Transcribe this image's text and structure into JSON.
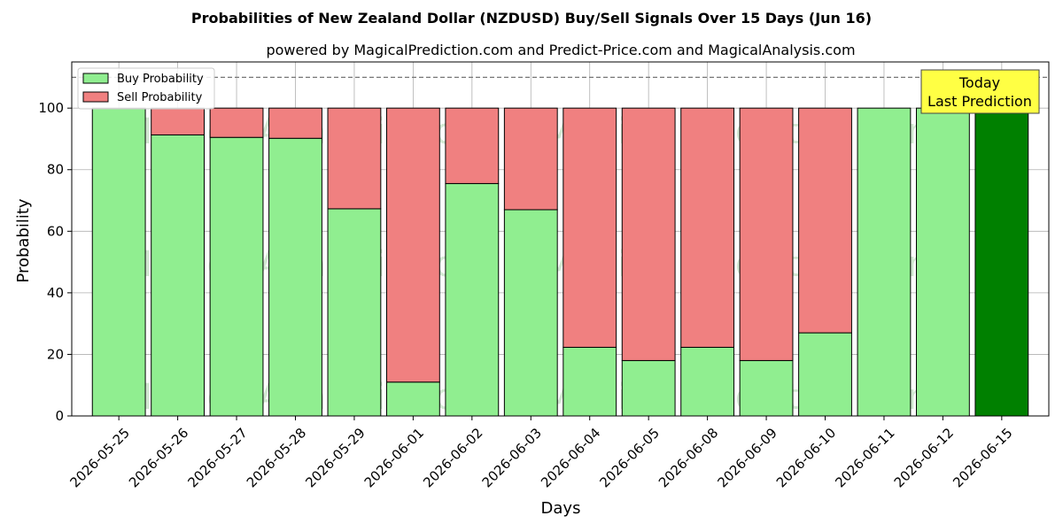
{
  "chart_data": {
    "type": "bar",
    "stacked": true,
    "title": "Probabilities of New Zealand Dollar (NZDUSD) Buy/Sell Signals Over 15 Days (Jun 16)",
    "subtitle": "powered by MagicalPrediction.com and Predict-Price.com and MagicalAnalysis.com",
    "xlabel": "Days",
    "ylabel": "Probability",
    "ylim": [
      0,
      115
    ],
    "yticks": [
      0,
      20,
      40,
      60,
      80,
      100
    ],
    "grid": true,
    "legend_position": "top-left",
    "reference_line": {
      "y": 110,
      "style": "dashed"
    },
    "categories": [
      "2026-05-25",
      "2026-05-26",
      "2026-05-27",
      "2026-05-28",
      "2026-05-29",
      "2026-06-01",
      "2026-06-02",
      "2026-06-03",
      "2026-06-04",
      "2026-06-05",
      "2026-06-08",
      "2026-06-09",
      "2026-06-10",
      "2026-06-11",
      "2026-06-12",
      "2026-06-15"
    ],
    "series": [
      {
        "name": "Buy Probability",
        "color": "#90ee90",
        "values": [
          100,
          91.3,
          90.5,
          90.2,
          67.3,
          11.0,
          75.5,
          67.0,
          22.3,
          18.0,
          22.3,
          18.0,
          27.0,
          100,
          100,
          100
        ]
      },
      {
        "name": "Sell Probability",
        "color": "#f08080",
        "values": [
          0,
          8.7,
          9.5,
          9.8,
          32.7,
          89.0,
          24.5,
          33.0,
          77.7,
          82.0,
          77.7,
          82.0,
          73.0,
          0,
          0,
          0
        ]
      }
    ],
    "highlight": {
      "index": 15,
      "color": "#008000"
    },
    "annotation": {
      "lines": [
        "Today",
        "Last Prediction"
      ],
      "background": "#ffff44"
    },
    "watermarks": [
      "MagicalAnalysis.com",
      "MagicalPrediction.com"
    ]
  }
}
